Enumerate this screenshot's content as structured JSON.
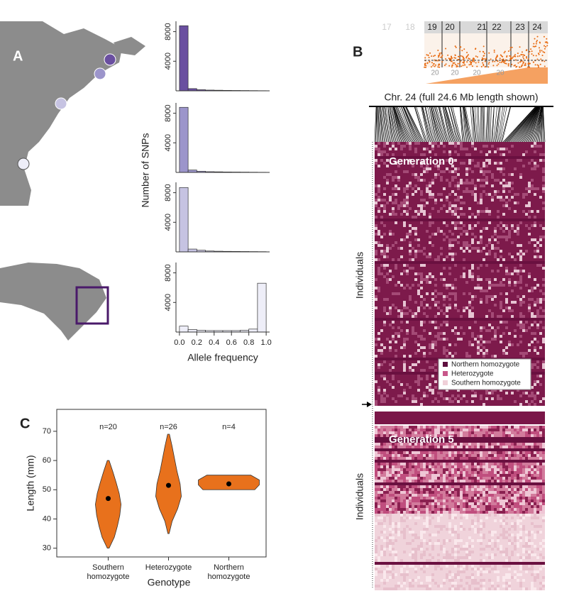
{
  "figure": {
    "panel_labels": [
      "A",
      "B",
      "C"
    ]
  },
  "panel_a": {
    "y_label": "Number of SNPs",
    "x_label": "Allele frequency"
  },
  "chart_data": [
    {
      "type": "histogram",
      "bins": [
        0,
        0.1,
        0.2,
        0.3,
        0.4,
        0.5,
        0.6,
        0.7,
        0.8,
        0.9,
        1.0
      ],
      "counts": [
        8800,
        300,
        150,
        100,
        80,
        60,
        50,
        40,
        30,
        20
      ],
      "color": "#6a4fa0",
      "xlim": [
        -0.04,
        1.04
      ],
      "ylim": [
        0,
        9400
      ],
      "yticks": [
        4000,
        8000
      ]
    },
    {
      "type": "histogram",
      "bins": [
        0,
        0.1,
        0.2,
        0.3,
        0.4,
        0.5,
        0.6,
        0.7,
        0.8,
        0.9,
        1.0
      ],
      "counts": [
        8800,
        320,
        160,
        100,
        80,
        60,
        50,
        40,
        30,
        20
      ],
      "color": "#9c95cb",
      "xlim": [
        -0.04,
        1.04
      ],
      "ylim": [
        0,
        9400
      ],
      "yticks": [
        4000,
        8000
      ]
    },
    {
      "type": "histogram",
      "bins": [
        0,
        0.1,
        0.2,
        0.3,
        0.4,
        0.5,
        0.6,
        0.7,
        0.8,
        0.9,
        1.0
      ],
      "counts": [
        8700,
        380,
        220,
        120,
        90,
        70,
        60,
        50,
        40,
        30
      ],
      "color": "#c6c3e2",
      "xlim": [
        -0.04,
        1.04
      ],
      "ylim": [
        0,
        9400
      ],
      "yticks": [
        4000,
        8000
      ]
    },
    {
      "type": "histogram",
      "bins": [
        0,
        0.1,
        0.2,
        0.3,
        0.4,
        0.5,
        0.6,
        0.7,
        0.8,
        0.9,
        1.0
      ],
      "counts": [
        800,
        350,
        250,
        200,
        200,
        200,
        200,
        250,
        400,
        6600
      ],
      "color": "#eeeef8",
      "xlim": [
        -0.04,
        1.04
      ],
      "ylim": [
        0,
        9400
      ],
      "yticks": [
        4000,
        8000
      ],
      "xticks": [
        {
          "value": 0,
          "label": "0.0"
        },
        0.2,
        0.4,
        0.6,
        0.8,
        {
          "value": 1,
          "label": "1.0"
        }
      ]
    },
    {
      "type": "violin",
      "categories": [
        "Southern homozygote",
        "Heterozygote",
        "Northern homozygote"
      ],
      "annotations": [
        "n=20",
        "n=26",
        "n=4"
      ],
      "ranges": [
        [
          30,
          60
        ],
        [
          35,
          69
        ],
        [
          50,
          55
        ]
      ],
      "densities": [
        [
          0.03,
          0.2,
          0.3,
          0.38,
          0.42,
          0.36,
          0.26,
          0.15,
          0.03
        ],
        [
          0.02,
          0.12,
          0.3,
          0.42,
          0.38,
          0.28,
          0.2,
          0.12,
          0.03
        ],
        [
          0.85,
          1.0,
          1.0,
          0.72
        ]
      ],
      "medians": [
        47,
        51.5,
        52
      ],
      "color": "#e8711c",
      "ylim": [
        27,
        77.5
      ],
      "yticks": [
        30,
        40,
        50,
        60,
        70
      ],
      "y_label": "Length (mm)",
      "x_label": "Genotype"
    }
  ],
  "panel_b": {
    "chromosomes": [
      "17",
      "18",
      "19",
      "20",
      "21",
      "22",
      "23",
      "24"
    ],
    "position_labels": [
      "20",
      "20",
      "20",
      "20"
    ],
    "title": "Chr. 24 (full 24.6 Mb length shown)",
    "generations": [
      "Generation 0",
      "Generation 5"
    ],
    "y_label": "Individuals",
    "legend": [
      {
        "name": "Northern homozygote",
        "color": "#5e0f3e"
      },
      {
        "name": "Heterozygote",
        "color": "#c8578a"
      },
      {
        "name": "Southern homozygote",
        "color": "#f0d0d8"
      }
    ]
  }
}
